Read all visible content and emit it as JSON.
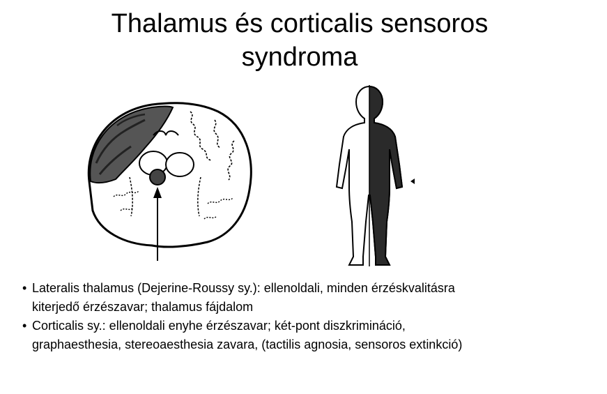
{
  "title": {
    "line1": "Thalamus és corticalis sensoros",
    "line2": "syndroma"
  },
  "bullets": [
    {
      "line1": "Lateralis thalamus (Dejerine-Roussy sy.): ellenoldali, minden érzéskvalitásra",
      "line2": "kiterjedő érzészavar; thalamus fájdalom"
    },
    {
      "line1": "Corticalis sy.: ellenoldali enyhe érzészavar; két-pont diszkrimináció,",
      "line2": "graphaesthesia, stereoaesthesia zavara, (tactilis agnosia, sensoros extinkció)"
    }
  ],
  "bullet_glyph": "•"
}
